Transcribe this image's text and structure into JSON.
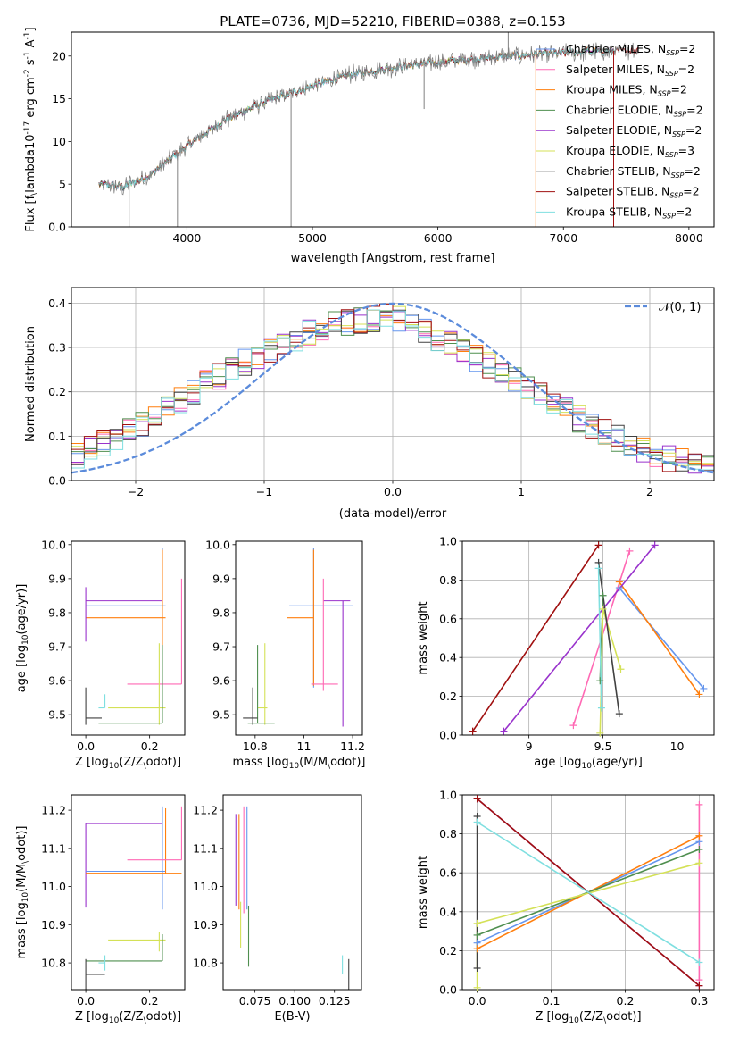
{
  "figure": {
    "title": "PLATE=0736, MJD=52210, FIBERID=0388, z=0.153"
  },
  "series_names": [
    "Chabrier MILES, N$_{SSP}$=2",
    "Salpeter MILES, N$_{SSP}$=2",
    "Kroupa MILES, N$_{SSP}$=2",
    "Chabrier ELODIE, N$_{SSP}$=2",
    "Salpeter ELODIE, N$_{SSP}$=2",
    "Kroupa ELODIE, N$_{SSP}$=3",
    "Chabrier STELIB, N$_{SSP}$=2",
    "Salpeter STELIB, N$_{SSP}$=2",
    "Kroupa STELIB, N$_{SSP}$=2"
  ],
  "legend_entries": [
    {
      "model": "Chabrier MILES",
      "nssp": "2"
    },
    {
      "model": "Salpeter MILES",
      "nssp": "2"
    },
    {
      "model": "Kroupa MILES",
      "nssp": "2"
    },
    {
      "model": "Chabrier ELODIE",
      "nssp": "2"
    },
    {
      "model": "Salpeter ELODIE",
      "nssp": "2"
    },
    {
      "model": "Kroupa ELODIE",
      "nssp": "3"
    },
    {
      "model": "Chabrier STELIB",
      "nssp": "2"
    },
    {
      "model": "Salpeter STELIB",
      "nssp": "2"
    },
    {
      "model": "Kroupa STELIB",
      "nssp": "2"
    }
  ],
  "colors": {
    "spectrum_data": "#808080",
    "series": [
      "#6495ED",
      "#FF69B4",
      "#FF7F0E",
      "#4F8F4F",
      "#9932CC",
      "#D4E157",
      "#404040",
      "#A01010",
      "#7FDFE0"
    ],
    "gaussian": "#5B8BDB"
  },
  "chart_data": [
    {
      "type": "line",
      "name": "spectrum",
      "xlabel": "wavelength [Angstrom, rest frame]",
      "ylabel": "Flux [f$_\\lambda$10$^{-17}$ erg cm$^{-2}$ s$^{-1}$ A$^{-1}$]",
      "xlim": [
        3080,
        8200
      ],
      "ylim": [
        0,
        22.8
      ],
      "xticks": [
        4000,
        5000,
        6000,
        7000,
        8000
      ],
      "yticks": [
        0,
        5,
        10,
        15,
        20
      ],
      "continuum": {
        "x": [
          3300,
          3500,
          3700,
          4000,
          4300,
          4600,
          5000,
          5300,
          5700,
          6000,
          6400,
          6800,
          7200,
          7600
        ],
        "y": [
          5.0,
          4.7,
          6.0,
          9.5,
          12.5,
          14.5,
          16.5,
          17.8,
          18.8,
          19.3,
          19.8,
          20.2,
          20.5,
          20.7
        ]
      },
      "noise_amplitude": 0.8,
      "spikes": [
        {
          "x": 3540,
          "y": 0
        },
        {
          "x": 3925,
          "y": 0
        },
        {
          "x": 4830,
          "y": 0
        },
        {
          "x": 6780,
          "y": 0
        },
        {
          "x": 7400,
          "y": 0
        },
        {
          "x": 5890,
          "y": 13.8
        },
        {
          "x": 6560,
          "y": 22.8
        }
      ],
      "legend": "upper right"
    },
    {
      "type": "line",
      "name": "residual_histogram",
      "xlabel": "(data-model)/error",
      "ylabel": "Normed distribution",
      "xlim": [
        -2.5,
        2.5
      ],
      "ylim": [
        0,
        0.435
      ],
      "xticks": [
        -2,
        -1,
        0,
        1,
        2
      ],
      "yticks": [
        0.0,
        0.1,
        0.2,
        0.3,
        0.4
      ],
      "grid": true,
      "bin_width": 0.1,
      "gaussian_label": "$\\mathcal{N}(0,1)$",
      "gaussian_curve": {
        "x": [
          -2.5,
          -2.0,
          -1.5,
          -1.0,
          -0.5,
          0,
          0.5,
          1.0,
          1.5,
          2.0,
          2.5
        ],
        "y": [
          0.018,
          0.054,
          0.13,
          0.242,
          0.352,
          0.399,
          0.352,
          0.242,
          0.13,
          0.054,
          0.018
        ]
      },
      "histogram_envelope": {
        "x": [
          -2.5,
          -2.0,
          -1.5,
          -1.0,
          -0.5,
          0,
          0.5,
          1.0,
          1.5,
          2.0,
          2.5
        ],
        "y": [
          0.05,
          0.12,
          0.21,
          0.29,
          0.35,
          0.37,
          0.3,
          0.22,
          0.13,
          0.06,
          0.025
        ]
      },
      "legend": "upper right"
    },
    {
      "type": "scatter",
      "name": "Z_vs_age",
      "xlabel": "Z [log$_{10}$($Z/Z_\\odot$)]",
      "ylabel": "age  [log$_{10}$($age/yr$)]",
      "xlim": [
        -0.045,
        0.31
      ],
      "ylim": [
        9.44,
        10.01
      ],
      "xticks": [
        0.0,
        0.2
      ],
      "yticks": [
        9.5,
        9.6,
        9.7,
        9.8,
        9.9,
        10.0
      ]
    },
    {
      "type": "scatter",
      "name": "mass_vs_age",
      "xlabel": "mass [log$_{10}$($M/M_\\odot$)]",
      "ylabel": "",
      "xlim": [
        10.72,
        11.24
      ],
      "ylim": [
        9.44,
        10.01
      ],
      "xticks": [
        10.8,
        11.0,
        11.2
      ],
      "yticks": [
        9.5,
        9.6,
        9.7,
        9.8,
        9.9,
        10.0
      ]
    },
    {
      "type": "line",
      "name": "age_vs_massweight",
      "xlabel": "age  [log$_{10}$($age/yr$)]",
      "ylabel": "mass weight",
      "xlim": [
        8.55,
        10.25
      ],
      "ylim": [
        0,
        1.0
      ],
      "xticks": [
        9.0,
        9.5,
        10.0
      ],
      "yticks": [
        0.0,
        0.2,
        0.4,
        0.6,
        0.8,
        1.0
      ],
      "grid": true,
      "series": [
        {
          "name": "Chabrier MILES",
          "x": [
            9.61,
            10.18
          ],
          "y": [
            0.76,
            0.24
          ]
        },
        {
          "name": "Salpeter MILES",
          "x": [
            9.3,
            9.68
          ],
          "y": [
            0.05,
            0.95
          ]
        },
        {
          "name": "Kroupa MILES",
          "x": [
            9.61,
            10.15
          ],
          "y": [
            0.79,
            0.21
          ]
        },
        {
          "name": "Chabrier ELODIE",
          "x": [
            9.48,
            9.5
          ],
          "y": [
            0.28,
            0.72
          ]
        },
        {
          "name": "Salpeter ELODIE",
          "x": [
            8.83,
            9.85
          ],
          "y": [
            0.02,
            0.98
          ]
        },
        {
          "name": "Kroupa ELODIE",
          "x": [
            9.48,
            9.5,
            9.62
          ],
          "y": [
            0.01,
            0.65,
            0.34
          ]
        },
        {
          "name": "Chabrier STELIB",
          "x": [
            9.47,
            9.61
          ],
          "y": [
            0.89,
            0.11
          ]
        },
        {
          "name": "Salpeter STELIB",
          "x": [
            8.62,
            9.47
          ],
          "y": [
            0.02,
            0.98
          ]
        },
        {
          "name": "Kroupa STELIB",
          "x": [
            9.47,
            9.49
          ],
          "y": [
            0.86,
            0.14
          ]
        }
      ]
    },
    {
      "type": "scatter",
      "name": "Z_vs_mass",
      "xlabel": "Z [log$_{10}$($Z/Z_\\odot$)]",
      "ylabel": "mass [log$_{10}$($M/M_\\odot$)]",
      "xlim": [
        -0.045,
        0.31
      ],
      "ylim": [
        10.73,
        11.24
      ],
      "xticks": [
        0.0,
        0.2
      ],
      "yticks": [
        10.8,
        10.9,
        11.0,
        11.1,
        11.2
      ]
    },
    {
      "type": "scatter",
      "name": "EBV_vs_mass",
      "xlabel": "E(B-V)",
      "ylabel": "",
      "xlim": [
        0.055,
        0.142
      ],
      "ylim": [
        10.73,
        11.24
      ],
      "xticks": [
        0.075,
        0.1,
        0.125
      ],
      "xtick_labels": [
        "0.075",
        "0.100",
        "0.125"
      ],
      "yticks": [
        10.8,
        10.9,
        11.0,
        11.1,
        11.2
      ]
    },
    {
      "type": "line",
      "name": "Z_vs_massweight",
      "xlabel": "Z [log$_{10}$($Z/Z_\\odot$)]",
      "ylabel": "mass weight",
      "xlim": [
        -0.02,
        0.32
      ],
      "ylim": [
        0,
        1.0
      ],
      "xticks": [
        0.0,
        0.1,
        0.2,
        0.3
      ],
      "yticks": [
        0.0,
        0.2,
        0.4,
        0.6,
        0.8,
        1.0
      ],
      "grid": true,
      "series": [
        {
          "name": "Chabrier MILES",
          "x": [
            0,
            0.3
          ],
          "y": [
            0.24,
            0.76
          ]
        },
        {
          "name": "Salpeter MILES",
          "x": [
            0.3,
            0.3
          ],
          "y": [
            0.05,
            0.95
          ]
        },
        {
          "name": "Kroupa MILES",
          "x": [
            0,
            0.3
          ],
          "y": [
            0.21,
            0.79
          ]
        },
        {
          "name": "Chabrier ELODIE",
          "x": [
            0,
            0.3
          ],
          "y": [
            0.28,
            0.72
          ]
        },
        {
          "name": "Salpeter ELODIE",
          "x": [
            0,
            0.3
          ],
          "y": [
            0.98,
            0.02
          ]
        },
        {
          "name": "Kroupa ELODIE",
          "x": [
            0,
            0,
            0.3
          ],
          "y": [
            0.01,
            0.34,
            0.65
          ]
        },
        {
          "name": "Chabrier STELIB",
          "x": [
            0,
            0
          ],
          "y": [
            0.11,
            0.89
          ]
        },
        {
          "name": "Salpeter STELIB",
          "x": [
            0,
            0.3
          ],
          "y": [
            0.98,
            0.02
          ]
        },
        {
          "name": "Kroupa STELIB",
          "x": [
            0,
            0.3
          ],
          "y": [
            0.86,
            0.14
          ]
        }
      ]
    }
  ],
  "errorbars": {
    "Z_vs_age": [
      {
        "c": 0,
        "x": 0.24,
        "y": 9.82,
        "xerr": [
          0.24,
          0.01
        ],
        "yerr": [
          0.24,
          0.17
        ]
      },
      {
        "c": 2,
        "x": 0.24,
        "y": 9.785,
        "xerr": [
          0.24,
          0.01
        ],
        "yerr": [
          0.2,
          0.2
        ]
      },
      {
        "c": 4,
        "x": 0.0,
        "y": 9.835,
        "xerr": [
          0.0,
          0.24
        ],
        "yerr": [
          0.12,
          0.04
        ]
      },
      {
        "c": 1,
        "x": 0.3,
        "y": 9.59,
        "xerr": [
          0.17,
          0.0
        ],
        "yerr": [
          0.0,
          0.31
        ]
      },
      {
        "c": 5,
        "x": 0.23,
        "y": 9.52,
        "xerr": [
          0.16,
          0.02
        ],
        "yerr": [
          0.05,
          0.19
        ]
      },
      {
        "c": 3,
        "x": 0.24,
        "y": 9.475,
        "xerr": [
          0.2,
          0.0
        ],
        "yerr": [
          0.0,
          0.23
        ]
      },
      {
        "c": 6,
        "x": 0.0,
        "y": 9.49,
        "xerr": [
          0.0,
          0.05
        ],
        "yerr": [
          0.02,
          0.09
        ]
      },
      {
        "c": 8,
        "x": 0.06,
        "y": 9.52,
        "xerr": [
          0.02,
          0.0
        ],
        "yerr": [
          0.0,
          0.04
        ]
      }
    ],
    "mass_vs_age": [
      {
        "c": 0,
        "x": 11.04,
        "y": 9.82,
        "xerr": [
          0.1,
          0.16
        ],
        "yerr": [
          0.24,
          0.17
        ]
      },
      {
        "c": 2,
        "x": 11.04,
        "y": 9.785,
        "xerr": [
          0.11,
          0.0
        ],
        "yerr": [
          0.2,
          0.2
        ]
      },
      {
        "c": 4,
        "x": 11.16,
        "y": 9.835,
        "xerr": [
          0.08,
          0.03
        ],
        "yerr": [
          0.37,
          0.0
        ]
      },
      {
        "c": 1,
        "x": 11.08,
        "y": 9.59,
        "xerr": [
          0.05,
          0.06
        ],
        "yerr": [
          0.02,
          0.31
        ]
      },
      {
        "c": 5,
        "x": 10.84,
        "y": 9.52,
        "xerr": [
          0.03,
          0.01
        ],
        "yerr": [
          0.05,
          0.19
        ]
      },
      {
        "c": 3,
        "x": 10.81,
        "y": 9.475,
        "xerr": [
          0.04,
          0.07
        ],
        "yerr": [
          0.0,
          0.23
        ]
      },
      {
        "c": 6,
        "x": 10.79,
        "y": 9.49,
        "xerr": [
          0.04,
          0.02
        ],
        "yerr": [
          0.02,
          0.09
        ]
      }
    ],
    "Z_vs_mass": [
      {
        "c": 4,
        "x": 0.0,
        "y": 11.165,
        "xerr": [
          0.0,
          0.24
        ],
        "yerr": [
          0.22,
          0.0
        ]
      },
      {
        "c": 0,
        "x": 0.24,
        "y": 11.04,
        "xerr": [
          0.24,
          0.01
        ],
        "yerr": [
          0.1,
          0.17
        ]
      },
      {
        "c": 2,
        "x": 0.25,
        "y": 11.035,
        "xerr": [
          0.25,
          0.05
        ],
        "yerr": [
          0.0,
          0.17
        ]
      },
      {
        "c": 1,
        "x": 0.3,
        "y": 11.07,
        "xerr": [
          0.17,
          0.0
        ],
        "yerr": [
          0.0,
          0.14
        ]
      },
      {
        "c": 5,
        "x": 0.23,
        "y": 10.86,
        "xerr": [
          0.16,
          0.02
        ],
        "yerr": [
          0.03,
          0.02
        ]
      },
      {
        "c": 3,
        "x": 0.24,
        "y": 10.805,
        "xerr": [
          0.24,
          0.0
        ],
        "yerr": [
          0.0,
          0.07
        ]
      },
      {
        "c": 6,
        "x": 0.0,
        "y": 10.77,
        "xerr": [
          0.0,
          0.06
        ],
        "yerr": [
          0.05,
          0.04
        ]
      },
      {
        "c": 8,
        "x": 0.06,
        "y": 10.8,
        "xerr": [
          0.02,
          0.0
        ],
        "yerr": [
          0.02,
          0.02
        ]
      },
      {
        "c": 7,
        "x": 0.0,
        "y": 10.855,
        "xerr": [
          0.0,
          0.0
        ],
        "yerr": [
          0.0,
          0.0
        ]
      }
    ],
    "EBV_vs_mass": [
      {
        "c": 0,
        "x": 0.07,
        "y": 11.04,
        "xerr": [
          0,
          0
        ],
        "yerr": [
          0.1,
          0.17
        ]
      },
      {
        "c": 1,
        "x": 0.068,
        "y": 11.07,
        "xerr": [
          0,
          0
        ],
        "yerr": [
          0.14,
          0.14
        ]
      },
      {
        "c": 2,
        "x": 0.065,
        "y": 11.02,
        "xerr": [
          0,
          0
        ],
        "yerr": [
          0.08,
          0.17
        ]
      },
      {
        "c": 3,
        "x": 0.071,
        "y": 10.87,
        "xerr": [
          0,
          0
        ],
        "yerr": [
          0.08,
          0.08
        ]
      },
      {
        "c": 4,
        "x": 0.063,
        "y": 11.07,
        "xerr": [
          0,
          0
        ],
        "yerr": [
          0.12,
          0.12
        ]
      },
      {
        "c": 5,
        "x": 0.066,
        "y": 10.9,
        "xerr": [
          0,
          0
        ],
        "yerr": [
          0.06,
          0.06
        ]
      },
      {
        "c": 6,
        "x": 0.134,
        "y": 10.77,
        "xerr": [
          0,
          0
        ],
        "yerr": [
          0.04,
          0.04
        ]
      },
      {
        "c": 8,
        "x": 0.13,
        "y": 10.8,
        "xerr": [
          0,
          0
        ],
        "yerr": [
          0.03,
          0.02
        ]
      }
    ]
  }
}
